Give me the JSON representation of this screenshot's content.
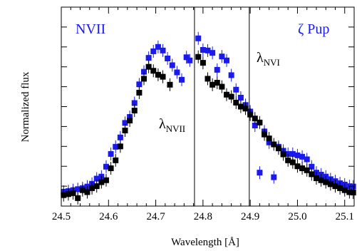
{
  "chart_data": {
    "type": "scatter",
    "title": "",
    "xlabel": "Wavelength [Å]",
    "ylabel": "Normalized flux",
    "xlim": [
      24.5,
      25.12
    ],
    "ylim": [
      0,
      1
    ],
    "x_ticks": [
      "24.5",
      "24.6",
      "24.7",
      "24.8",
      "24.9",
      "25.0",
      "25.1"
    ],
    "x_tick_values": [
      24.5,
      24.6,
      24.7,
      24.8,
      24.9,
      25.0,
      25.1
    ],
    "y_ticks_labeled": false,
    "grid": false,
    "annotations": {
      "ion": "NVII",
      "star": "ζ Pup",
      "line1_lambda": "λ",
      "line1_sub": "NVII",
      "line2_lambda": "λ",
      "line2_sub": "NVI"
    },
    "vertical_lines": [
      24.782,
      24.898
    ],
    "colors": {
      "series_a": "#1a1aee",
      "series_b": "#000000"
    },
    "series": [
      {
        "color": "#1a1aee",
        "marker": "square",
        "points": [
          [
            24.505,
            0.072
          ],
          [
            24.515,
            0.075
          ],
          [
            24.525,
            0.08
          ],
          [
            24.535,
            0.085
          ],
          [
            24.545,
            0.09
          ],
          [
            24.555,
            0.098
          ],
          [
            24.565,
            0.112
          ],
          [
            24.575,
            0.138
          ],
          [
            24.585,
            0.148
          ],
          [
            24.595,
            0.198
          ],
          [
            24.605,
            0.262
          ],
          [
            24.615,
            0.298
          ],
          [
            24.625,
            0.345
          ],
          [
            24.635,
            0.418
          ],
          [
            24.645,
            0.448
          ],
          [
            24.655,
            0.518
          ],
          [
            24.665,
            0.612
          ],
          [
            24.675,
            0.675
          ],
          [
            24.685,
            0.745
          ],
          [
            24.695,
            0.778
          ],
          [
            24.705,
            0.8
          ],
          [
            24.715,
            0.782
          ],
          [
            24.725,
            0.742
          ],
          [
            24.735,
            0.708
          ],
          [
            24.745,
            0.672
          ],
          [
            24.755,
            0.635
          ],
          [
            24.765,
            0.748
          ],
          [
            24.772,
            0.732
          ],
          [
            24.79,
            0.843
          ],
          [
            24.8,
            0.785
          ],
          [
            24.81,
            0.782
          ],
          [
            24.82,
            0.77
          ],
          [
            24.83,
            0.685
          ],
          [
            24.84,
            0.752
          ],
          [
            24.85,
            0.732
          ],
          [
            24.86,
            0.658
          ],
          [
            24.87,
            0.585
          ],
          [
            24.88,
            0.545
          ],
          [
            24.89,
            0.508
          ],
          [
            24.9,
            0.475
          ],
          [
            24.91,
            0.405
          ],
          [
            24.92,
            0.168
          ],
          [
            24.93,
            0.375
          ],
          [
            24.94,
            0.32
          ],
          [
            24.95,
            0.145
          ],
          [
            24.96,
            0.298
          ],
          [
            24.97,
            0.278
          ],
          [
            24.98,
            0.262
          ],
          [
            24.99,
            0.262
          ],
          [
            25.0,
            0.255
          ],
          [
            25.01,
            0.248
          ],
          [
            25.02,
            0.235
          ],
          [
            25.03,
            0.198
          ],
          [
            25.04,
            0.168
          ],
          [
            25.05,
            0.158
          ],
          [
            25.06,
            0.148
          ],
          [
            25.07,
            0.135
          ],
          [
            25.08,
            0.125
          ],
          [
            25.09,
            0.115
          ],
          [
            25.1,
            0.108
          ],
          [
            25.11,
            0.1
          ],
          [
            25.118,
            0.098
          ]
        ]
      },
      {
        "color": "#000000",
        "marker": "square",
        "points": [
          [
            24.505,
            0.055
          ],
          [
            24.515,
            0.06
          ],
          [
            24.525,
            0.065
          ],
          [
            24.535,
            0.04
          ],
          [
            24.545,
            0.08
          ],
          [
            24.555,
            0.07
          ],
          [
            24.565,
            0.09
          ],
          [
            24.575,
            0.1
          ],
          [
            24.585,
            0.12
          ],
          [
            24.595,
            0.13
          ],
          [
            24.605,
            0.19
          ],
          [
            24.615,
            0.23
          ],
          [
            24.625,
            0.3
          ],
          [
            24.635,
            0.38
          ],
          [
            24.645,
            0.43
          ],
          [
            24.655,
            0.48
          ],
          [
            24.665,
            0.57
          ],
          [
            24.675,
            0.64
          ],
          [
            24.685,
            0.7
          ],
          [
            24.695,
            0.68
          ],
          [
            24.705,
            0.66
          ],
          [
            24.715,
            0.65
          ],
          [
            24.73,
            0.61
          ],
          [
            24.79,
            0.75
          ],
          [
            24.8,
            0.72
          ],
          [
            24.81,
            0.64
          ],
          [
            24.82,
            0.61
          ],
          [
            24.83,
            0.62
          ],
          [
            24.84,
            0.6
          ],
          [
            24.85,
            0.56
          ],
          [
            24.86,
            0.55
          ],
          [
            24.87,
            0.52
          ],
          [
            24.88,
            0.5
          ],
          [
            24.89,
            0.49
          ],
          [
            24.9,
            0.46
          ],
          [
            24.91,
            0.44
          ],
          [
            24.92,
            0.42
          ],
          [
            24.93,
            0.36
          ],
          [
            24.94,
            0.34
          ],
          [
            24.95,
            0.31
          ],
          [
            24.96,
            0.29
          ],
          [
            24.97,
            0.26
          ],
          [
            24.98,
            0.23
          ],
          [
            24.99,
            0.22
          ],
          [
            25.0,
            0.2
          ],
          [
            25.01,
            0.19
          ],
          [
            25.02,
            0.18
          ],
          [
            25.03,
            0.16
          ],
          [
            25.04,
            0.14
          ],
          [
            25.05,
            0.13
          ],
          [
            25.06,
            0.12
          ],
          [
            25.07,
            0.11
          ],
          [
            25.08,
            0.1
          ],
          [
            25.09,
            0.09
          ],
          [
            25.1,
            0.08
          ],
          [
            25.11,
            0.07
          ],
          [
            25.118,
            0.068
          ]
        ]
      }
    ]
  }
}
